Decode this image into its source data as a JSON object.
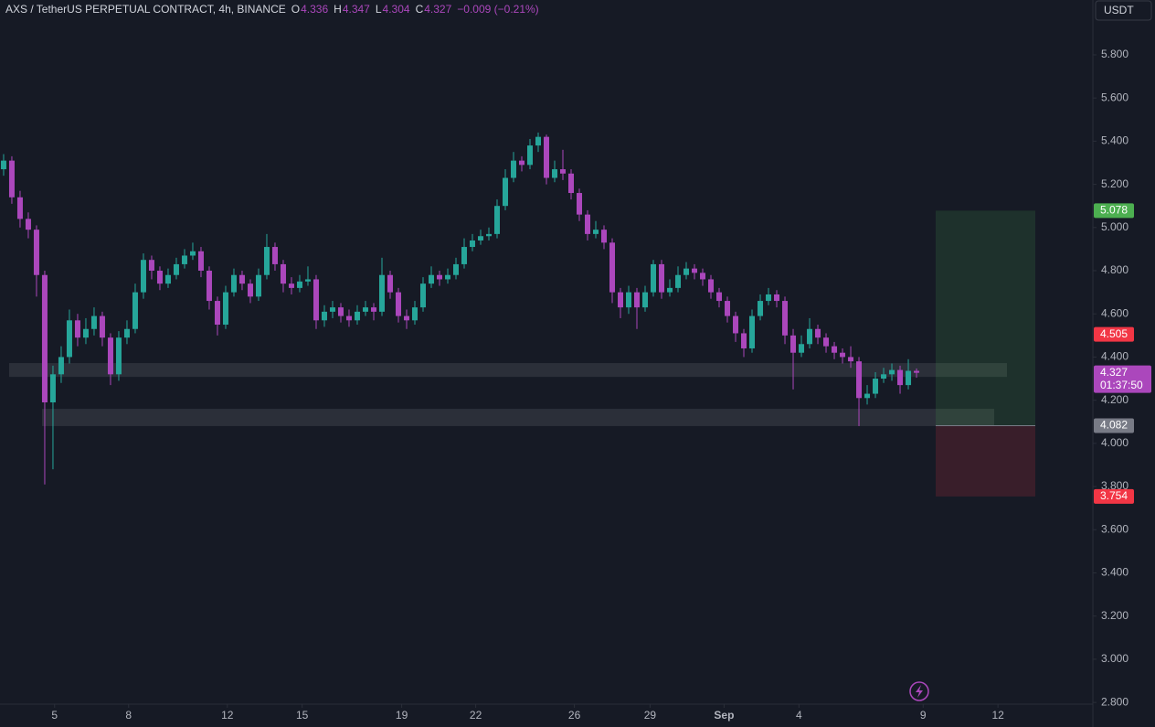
{
  "chart_data": {
    "type": "candlestick",
    "title": "AXS / TetherUS PERPETUAL CONTRACT, 4h, BINANCE",
    "ohlc_legend": [
      {
        "label": "O",
        "value": 4.336
      },
      {
        "label": "H",
        "value": 4.347
      },
      {
        "label": "L",
        "value": 4.304
      },
      {
        "label": "C",
        "value": 4.327
      }
    ],
    "change": "−0.009 (−0.21%)",
    "currency": "USDT",
    "up_color": "#26a69a",
    "down_color": "#ab47bc",
    "open": [
      5.27,
      5.31,
      5.14,
      5.04,
      4.99,
      4.78,
      4.19,
      4.32,
      4.4,
      4.57,
      4.49,
      4.53,
      4.59,
      4.49,
      4.32,
      4.49,
      4.53,
      4.7,
      4.85,
      4.8,
      4.74,
      4.78,
      4.83,
      4.87,
      4.89,
      4.8,
      4.66,
      4.55,
      4.7,
      4.78,
      4.74,
      4.68,
      4.78,
      4.91,
      4.83,
      4.74,
      4.72,
      4.75,
      4.76,
      4.57,
      4.61,
      4.63,
      4.59,
      4.57,
      4.61,
      4.63,
      4.61,
      4.78,
      4.7,
      4.59,
      4.57,
      4.63,
      4.74,
      4.78,
      4.76,
      4.78,
      4.83,
      4.91,
      4.94,
      4.96,
      4.97,
      5.1,
      5.23,
      5.31,
      5.29,
      5.38,
      5.42,
      5.23,
      5.27,
      5.25,
      5.16,
      5.06,
      4.97,
      4.99,
      4.93,
      4.7,
      4.63,
      4.7,
      4.63,
      4.7,
      4.83,
      4.7,
      4.72,
      4.78,
      4.81,
      4.79,
      4.76,
      4.7,
      4.66,
      4.59,
      4.51,
      4.44,
      4.59,
      4.66,
      4.69,
      4.66,
      4.5,
      4.42,
      4.46,
      4.53,
      4.49,
      4.45,
      4.42,
      4.4,
      4.38,
      4.21,
      4.23,
      4.3,
      4.32,
      4.34,
      4.27,
      4.336
    ],
    "high": [
      5.34,
      5.33,
      5.17,
      5.07,
      5.01,
      4.8,
      4.36,
      4.45,
      4.62,
      4.6,
      4.58,
      4.63,
      4.61,
      4.51,
      4.52,
      4.57,
      4.74,
      4.88,
      4.87,
      4.82,
      4.81,
      4.86,
      4.9,
      4.93,
      4.91,
      4.82,
      4.68,
      4.73,
      4.81,
      4.8,
      4.76,
      4.81,
      4.97,
      4.93,
      4.85,
      4.77,
      4.78,
      4.82,
      4.78,
      4.64,
      4.66,
      4.65,
      4.62,
      4.64,
      4.66,
      4.65,
      4.86,
      4.8,
      4.72,
      4.62,
      4.66,
      4.77,
      4.82,
      4.8,
      4.81,
      4.86,
      4.95,
      4.97,
      4.99,
      5.0,
      5.13,
      5.27,
      5.35,
      5.33,
      5.41,
      5.44,
      5.43,
      5.31,
      5.36,
      5.27,
      5.18,
      5.08,
      5.03,
      5.01,
      4.95,
      4.72,
      4.73,
      4.72,
      4.73,
      4.85,
      4.85,
      4.76,
      4.82,
      4.84,
      4.83,
      4.81,
      4.78,
      4.72,
      4.68,
      4.61,
      4.53,
      4.62,
      4.69,
      4.72,
      4.71,
      4.68,
      4.53,
      4.5,
      4.58,
      4.55,
      4.51,
      4.47,
      4.44,
      4.45,
      4.4,
      4.27,
      4.33,
      4.35,
      4.37,
      4.36,
      4.39,
      4.347
    ],
    "low": [
      5.24,
      5.11,
      5.0,
      4.95,
      4.68,
      3.81,
      3.88,
      4.28,
      4.37,
      4.45,
      4.46,
      4.5,
      4.45,
      4.27,
      4.29,
      4.46,
      4.51,
      4.67,
      4.76,
      4.71,
      4.72,
      4.76,
      4.81,
      4.85,
      4.77,
      4.62,
      4.5,
      4.53,
      4.68,
      4.71,
      4.65,
      4.66,
      4.76,
      4.8,
      4.7,
      4.69,
      4.7,
      4.73,
      4.53,
      4.54,
      4.58,
      4.56,
      4.54,
      4.55,
      4.59,
      4.57,
      4.59,
      4.67,
      4.56,
      4.53,
      4.55,
      4.61,
      4.72,
      4.73,
      4.74,
      4.76,
      4.81,
      4.89,
      4.92,
      4.94,
      4.95,
      5.08,
      5.21,
      5.26,
      5.27,
      5.35,
      5.2,
      5.21,
      5.22,
      5.13,
      5.03,
      4.94,
      4.95,
      4.9,
      4.65,
      4.58,
      4.6,
      4.53,
      4.61,
      4.68,
      4.67,
      4.68,
      4.7,
      4.76,
      4.76,
      4.73,
      4.67,
      4.63,
      4.56,
      4.47,
      4.4,
      4.42,
      4.57,
      4.64,
      4.63,
      4.46,
      4.25,
      4.4,
      4.44,
      4.46,
      4.42,
      4.39,
      4.37,
      4.35,
      4.08,
      4.18,
      4.21,
      4.28,
      4.29,
      4.23,
      4.25,
      4.304
    ],
    "close": [
      5.31,
      5.14,
      5.04,
      4.99,
      4.78,
      4.19,
      4.32,
      4.4,
      4.57,
      4.49,
      4.53,
      4.59,
      4.49,
      4.32,
      4.49,
      4.53,
      4.7,
      4.85,
      4.8,
      4.74,
      4.78,
      4.83,
      4.87,
      4.89,
      4.8,
      4.66,
      4.55,
      4.7,
      4.78,
      4.74,
      4.68,
      4.78,
      4.91,
      4.83,
      4.74,
      4.72,
      4.75,
      4.76,
      4.57,
      4.61,
      4.63,
      4.59,
      4.57,
      4.61,
      4.63,
      4.61,
      4.78,
      4.7,
      4.59,
      4.57,
      4.63,
      4.74,
      4.78,
      4.76,
      4.78,
      4.83,
      4.91,
      4.94,
      4.96,
      4.97,
      5.1,
      5.23,
      5.31,
      5.29,
      5.38,
      5.42,
      5.23,
      5.27,
      5.25,
      5.16,
      5.06,
      4.97,
      4.99,
      4.93,
      4.7,
      4.63,
      4.7,
      4.63,
      4.7,
      4.83,
      4.7,
      4.72,
      4.78,
      4.81,
      4.79,
      4.76,
      4.7,
      4.66,
      4.59,
      4.51,
      4.44,
      4.59,
      4.66,
      4.69,
      4.66,
      4.5,
      4.42,
      4.46,
      4.53,
      4.49,
      4.45,
      4.42,
      4.4,
      4.38,
      4.21,
      4.23,
      4.3,
      4.32,
      4.34,
      4.27,
      4.336,
      4.327
    ],
    "xlim": [
      -0.44,
      132.44
    ],
    "xticks": [
      {
        "value": 6.2,
        "label": "5"
      },
      {
        "value": 15.2,
        "label": "8"
      },
      {
        "value": 27.2,
        "label": "12"
      },
      {
        "value": 36.3,
        "label": "15"
      },
      {
        "value": 48.4,
        "label": "19"
      },
      {
        "value": 57.4,
        "label": "22"
      },
      {
        "value": 69.4,
        "label": "26"
      },
      {
        "value": 78.6,
        "label": "29"
      },
      {
        "value": 87.6,
        "label": "Sep"
      },
      {
        "value": 96.7,
        "label": "4"
      },
      {
        "value": 111.8,
        "label": "9"
      },
      {
        "value": 120.9,
        "label": "12"
      }
    ],
    "ylim": [
      2.792,
      6.054
    ],
    "yticks": [
      {
        "value": 2.8,
        "label": "2.800"
      },
      {
        "value": 3.0,
        "label": "3.000"
      },
      {
        "value": 3.2,
        "label": "3.200"
      },
      {
        "value": 3.4,
        "label": "3.400"
      },
      {
        "value": 3.6,
        "label": "3.600"
      },
      {
        "value": 3.8,
        "label": "3.800"
      },
      {
        "value": 4.0,
        "label": "4.000"
      },
      {
        "value": 4.2,
        "label": "4.200"
      },
      {
        "value": 4.4,
        "label": "4.400"
      },
      {
        "value": 4.6,
        "label": "4.600"
      },
      {
        "value": 4.8,
        "label": "4.800"
      },
      {
        "value": 5.0,
        "label": "5.000"
      },
      {
        "value": 5.2,
        "label": "5.200"
      },
      {
        "value": 5.4,
        "label": "5.400"
      },
      {
        "value": 5.6,
        "label": "5.600"
      },
      {
        "value": 5.8,
        "label": "5.800"
      }
    ],
    "zones": [
      {
        "low": 4.308,
        "high": 4.372
      },
      {
        "low": 4.08,
        "high": 4.16
      }
    ],
    "position": {
      "target": 5.078,
      "entry": 4.082,
      "stop": 3.754
    },
    "price_labels": [
      {
        "value": 5.078,
        "color": "#4caf50"
      },
      {
        "value": 4.505,
        "color": "#f23645"
      },
      {
        "value": 4.327,
        "color": "#ab47bc",
        "countdown": "01:37:50"
      },
      {
        "value": 4.082,
        "color": "#787b86"
      },
      {
        "value": 3.754,
        "color": "#f23645"
      }
    ]
  }
}
